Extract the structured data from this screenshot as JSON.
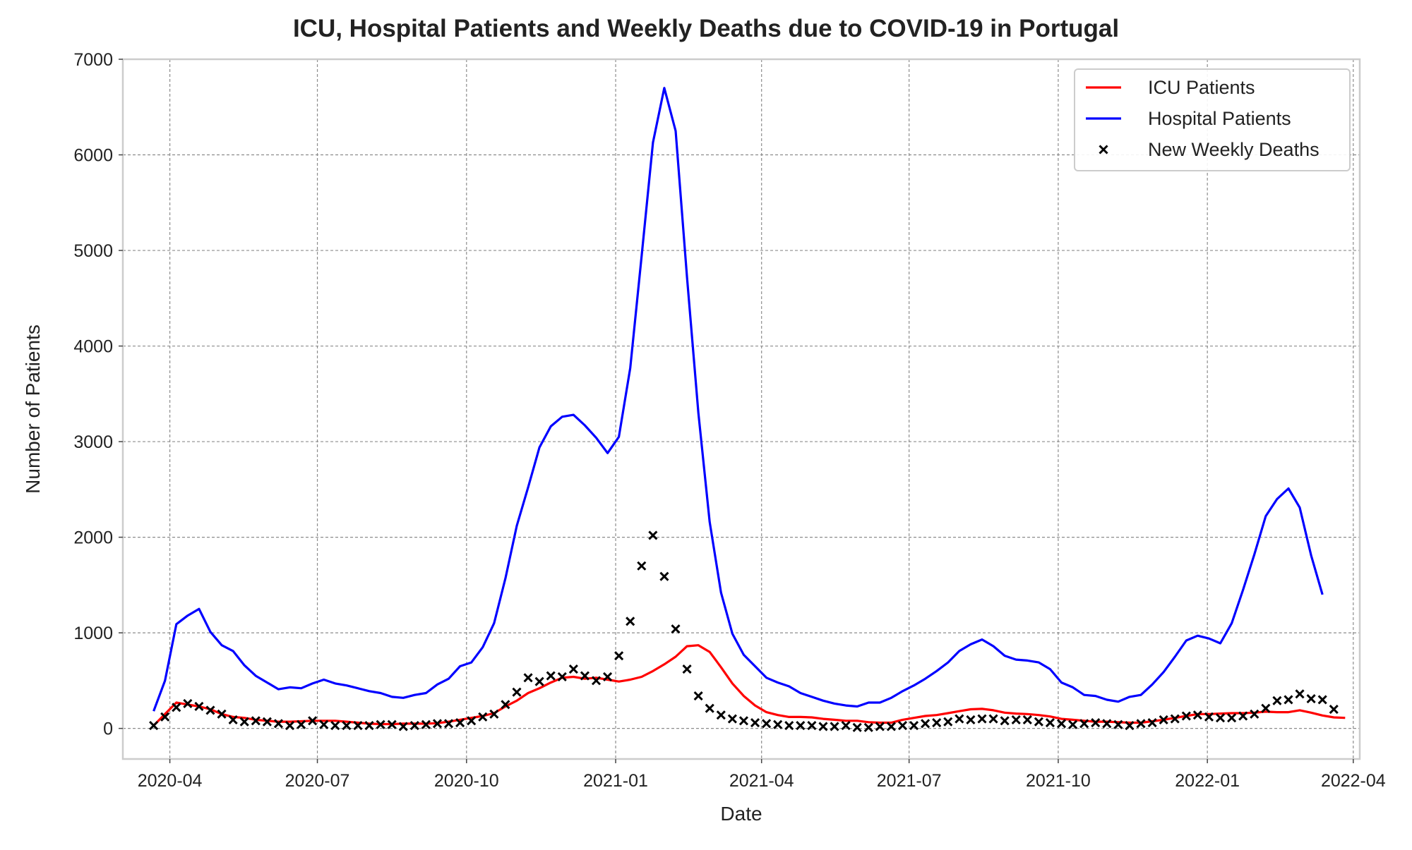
{
  "chart_data": {
    "type": "line",
    "title": "ICU, Hospital Patients and Weekly Deaths due to COVID-19 in Portugal",
    "xlabel": "Date",
    "ylabel": "Number of Patients",
    "ylim": [
      -320,
      7000
    ],
    "xlim": [
      "2020-03-03",
      "2022-04-05"
    ],
    "y_ticks": [
      0,
      1000,
      2000,
      3000,
      4000,
      5000,
      6000,
      7000
    ],
    "x_ticks": [
      "2020-04-01",
      "2020-07-01",
      "2020-10-01",
      "2021-01-01",
      "2021-04-01",
      "2021-07-01",
      "2021-10-01",
      "2022-01-01",
      "2022-04-01"
    ],
    "x_tick_labels": [
      "2020-04",
      "2020-07",
      "2020-10",
      "2021-01",
      "2021-04",
      "2021-07",
      "2021-10",
      "2022-01",
      "2022-04"
    ],
    "grid": true,
    "legend_position": "top-right",
    "x_start_date": "2020-03-22",
    "x_step_days": 7,
    "series": [
      {
        "name": "ICU Patients",
        "kind": "line",
        "color": "#ff0000",
        "values": [
          30,
          150,
          270,
          250,
          230,
          200,
          150,
          120,
          110,
          90,
          80,
          70,
          70,
          75,
          80,
          80,
          80,
          70,
          60,
          50,
          45,
          45,
          50,
          50,
          50,
          55,
          70,
          90,
          110,
          130,
          160,
          230,
          290,
          370,
          420,
          480,
          530,
          540,
          520,
          530,
          510,
          490,
          510,
          540,
          600,
          670,
          750,
          860,
          870,
          800,
          640,
          470,
          340,
          240,
          170,
          140,
          120,
          120,
          115,
          100,
          90,
          80,
          80,
          65,
          60,
          60,
          90,
          110,
          130,
          140,
          160,
          180,
          200,
          205,
          190,
          165,
          155,
          150,
          140,
          125,
          100,
          90,
          80,
          70,
          70,
          65,
          60,
          60,
          75,
          90,
          110,
          130,
          150,
          150,
          155,
          160,
          160,
          165,
          175,
          170,
          170,
          190,
          165,
          135,
          115,
          110
        ]
      },
      {
        "name": "Hospital Patients",
        "kind": "line",
        "color": "#0000ff",
        "values": [
          180,
          500,
          1090,
          1180,
          1250,
          1010,
          870,
          810,
          660,
          550,
          480,
          410,
          430,
          420,
          470,
          510,
          470,
          450,
          420,
          390,
          370,
          330,
          320,
          350,
          370,
          460,
          520,
          650,
          690,
          850,
          1100,
          1570,
          2120,
          2520,
          2940,
          3160,
          3260,
          3280,
          3170,
          3040,
          2880,
          3050,
          3770,
          4940,
          6130,
          6700,
          6250,
          4720,
          3300,
          2160,
          1420,
          990,
          770,
          650,
          530,
          480,
          440,
          370,
          330,
          290,
          260,
          240,
          230,
          270,
          270,
          320,
          390,
          450,
          520,
          600,
          690,
          810,
          880,
          930,
          860,
          760,
          720,
          710,
          690,
          620,
          480,
          430,
          350,
          340,
          300,
          280,
          330,
          350,
          460,
          590,
          750,
          920,
          970,
          940,
          890,
          1100,
          1450,
          1820,
          2220,
          2400,
          2510,
          2310,
          1810,
          1400
        ]
      },
      {
        "name": "New Weekly Deaths",
        "kind": "scatter",
        "marker": "x",
        "color": "#000000",
        "values": [
          30,
          120,
          220,
          260,
          230,
          190,
          150,
          90,
          70,
          80,
          70,
          50,
          30,
          40,
          80,
          40,
          30,
          30,
          30,
          30,
          40,
          40,
          20,
          30,
          40,
          50,
          50,
          60,
          80,
          120,
          150,
          250,
          380,
          530,
          490,
          550,
          540,
          620,
          550,
          500,
          540,
          760,
          1120,
          1700,
          2020,
          1590,
          1040,
          620,
          340,
          210,
          140,
          100,
          80,
          60,
          50,
          40,
          30,
          30,
          30,
          20,
          20,
          30,
          10,
          10,
          20,
          20,
          30,
          30,
          50,
          60,
          70,
          100,
          90,
          100,
          100,
          80,
          90,
          90,
          70,
          60,
          50,
          40,
          50,
          60,
          50,
          40,
          30,
          50,
          60,
          90,
          100,
          130,
          140,
          120,
          110,
          110,
          130,
          150,
          210,
          290,
          300,
          360,
          310,
          300,
          200
        ]
      }
    ]
  }
}
